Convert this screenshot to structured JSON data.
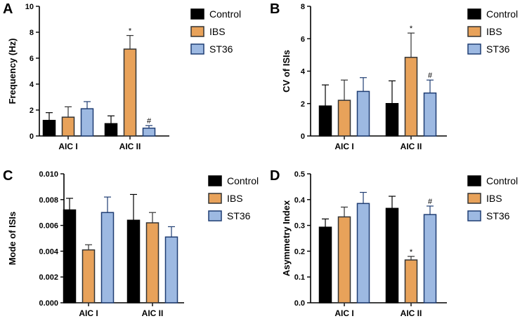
{
  "legend": [
    {
      "name": "Control",
      "fill": "#000000",
      "stroke": "#000000"
    },
    {
      "name": "IBS",
      "fill": "#e8a25a",
      "stroke": "#333333"
    },
    {
      "name": "ST36",
      "fill": "#9db9e2",
      "stroke": "#1f3d73"
    }
  ],
  "chart_data": [
    {
      "panel": "A",
      "type": "bar",
      "title": "",
      "xlabel": "",
      "ylabel": "Frequency (Hz)",
      "categories": [
        "AIC I",
        "AIC II"
      ],
      "ylim": [
        0,
        10
      ],
      "yticks": [
        0,
        2,
        4,
        6,
        8,
        10
      ],
      "tick_format": 0,
      "legend_position": "top-right",
      "series": [
        {
          "name": "Control",
          "values": [
            1.2,
            0.95
          ],
          "errors": [
            0.6,
            0.6
          ],
          "marks": [
            "",
            ""
          ]
        },
        {
          "name": "IBS",
          "values": [
            1.45,
            6.7
          ],
          "errors": [
            0.8,
            1.05
          ],
          "marks": [
            "",
            "*"
          ]
        },
        {
          "name": "ST36",
          "values": [
            2.1,
            0.6
          ],
          "errors": [
            0.55,
            0.2
          ],
          "marks": [
            "",
            "#"
          ]
        }
      ]
    },
    {
      "panel": "B",
      "type": "bar",
      "title": "",
      "xlabel": "",
      "ylabel": "CV of ISIs",
      "categories": [
        "AIC I",
        "AIC II"
      ],
      "ylim": [
        0,
        8
      ],
      "yticks": [
        0,
        2,
        4,
        6,
        8
      ],
      "tick_format": 0,
      "legend_position": "top-right",
      "series": [
        {
          "name": "Control",
          "values": [
            1.85,
            2.0
          ],
          "errors": [
            1.3,
            1.4
          ],
          "marks": [
            "",
            ""
          ]
        },
        {
          "name": "IBS",
          "values": [
            2.2,
            4.85
          ],
          "errors": [
            1.25,
            1.5
          ],
          "marks": [
            "",
            "*"
          ]
        },
        {
          "name": "ST36",
          "values": [
            2.75,
            2.65
          ],
          "errors": [
            0.85,
            0.8
          ],
          "marks": [
            "",
            "#"
          ]
        }
      ]
    },
    {
      "panel": "C",
      "type": "bar",
      "title": "",
      "xlabel": "",
      "ylabel": "Mode of ISIs",
      "categories": [
        "AIC I",
        "AIC II"
      ],
      "ylim": [
        0,
        0.01
      ],
      "yticks": [
        0,
        0.002,
        0.004,
        0.006,
        0.008,
        0.01
      ],
      "tick_format": 3,
      "legend_position": "top-right",
      "series": [
        {
          "name": "Control",
          "values": [
            0.0072,
            0.0064
          ],
          "errors": [
            0.0009,
            0.002
          ],
          "marks": [
            "",
            ""
          ]
        },
        {
          "name": "IBS",
          "values": [
            0.0041,
            0.0062
          ],
          "errors": [
            0.0004,
            0.0008
          ],
          "marks": [
            "",
            ""
          ]
        },
        {
          "name": "ST36",
          "values": [
            0.007,
            0.0051
          ],
          "errors": [
            0.0012,
            0.0008
          ],
          "marks": [
            "",
            ""
          ]
        }
      ]
    },
    {
      "panel": "D",
      "type": "bar",
      "title": "",
      "xlabel": "",
      "ylabel": "Asymmetry Index",
      "categories": [
        "AIC I",
        "AIC II"
      ],
      "ylim": [
        0,
        0.5
      ],
      "yticks": [
        0,
        0.1,
        0.2,
        0.3,
        0.4,
        0.5
      ],
      "tick_format": 1,
      "legend_position": "top-right",
      "series": [
        {
          "name": "Control",
          "values": [
            0.293,
            0.366
          ],
          "errors": [
            0.032,
            0.047
          ],
          "marks": [
            "",
            ""
          ]
        },
        {
          "name": "IBS",
          "values": [
            0.333,
            0.166
          ],
          "errors": [
            0.038,
            0.014
          ],
          "marks": [
            "",
            "*"
          ]
        },
        {
          "name": "ST36",
          "values": [
            0.385,
            0.342
          ],
          "errors": [
            0.043,
            0.033
          ],
          "marks": [
            "",
            "#"
          ]
        }
      ]
    }
  ]
}
